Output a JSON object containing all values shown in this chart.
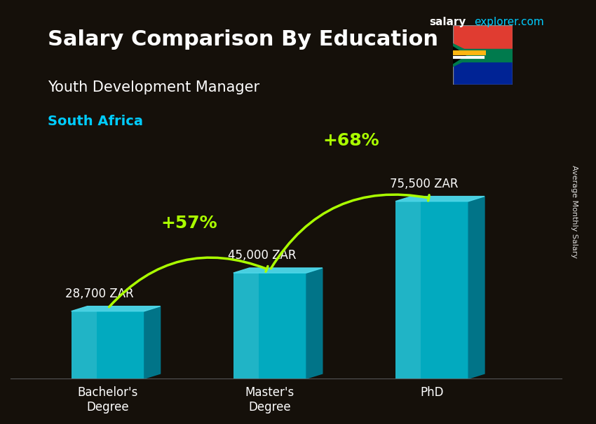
{
  "title_main": "Salary Comparison By Education",
  "subtitle": "Youth Development Manager",
  "country": "South Africa",
  "categories": [
    "Bachelor's\nDegree",
    "Master's\nDegree",
    "PhD"
  ],
  "values": [
    28700,
    45000,
    75500
  ],
  "value_labels": [
    "28,700 ZAR",
    "45,000 ZAR",
    "75,500 ZAR"
  ],
  "bar_color_top": "#00d4f5",
  "bar_color_mid": "#0099bb",
  "bar_color_dark": "#006688",
  "pct_labels": [
    "+57%",
    "+68%"
  ],
  "ylabel": "Average Monthly Salary",
  "background_color": "#1a1a2e",
  "title_color": "#ffffff",
  "subtitle_color": "#ffffff",
  "country_color": "#00ccff",
  "bar_alpha": 0.85,
  "site_name": "salary",
  "site_suffix": "explorer.com",
  "arrow_color": "#aaff00"
}
